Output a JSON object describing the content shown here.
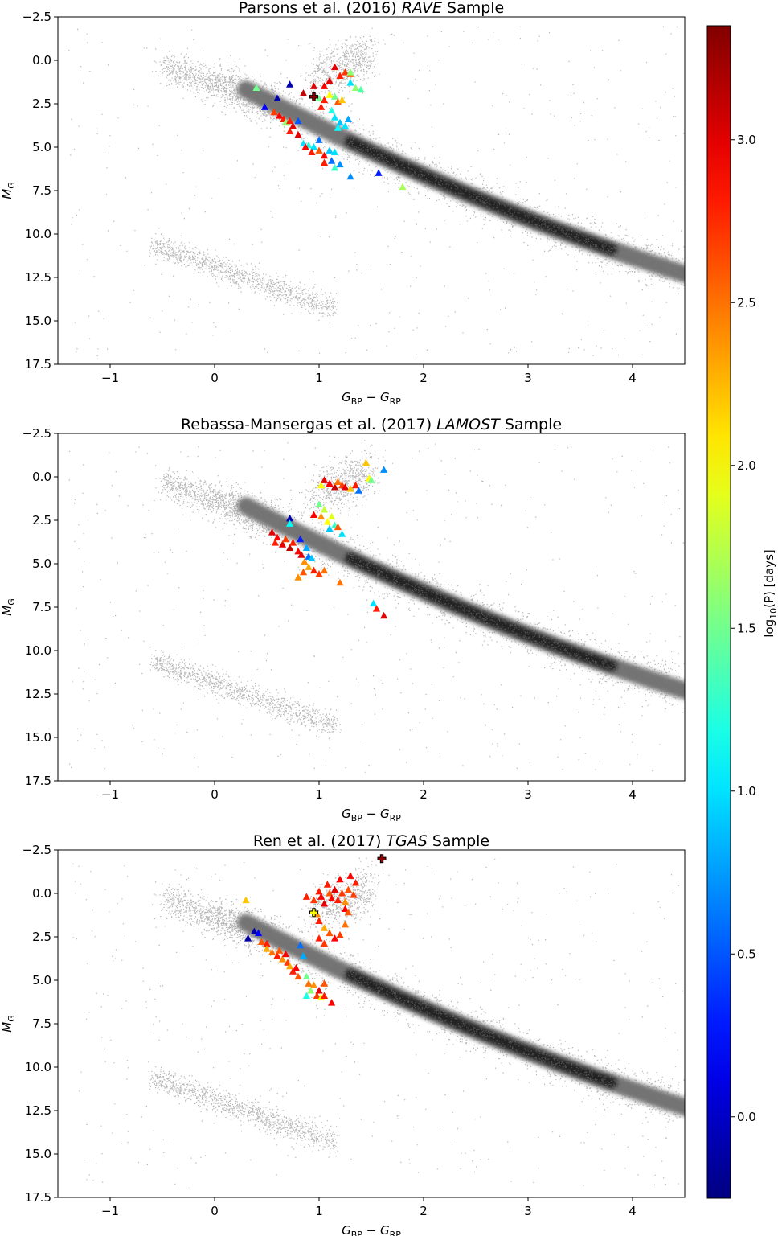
{
  "colorbar": {
    "label": "log10(P) [days]",
    "label_parts": {
      "base": "log",
      "sub": "10",
      "rest": "(P) [days]"
    },
    "range": [
      -0.25,
      3.35
    ],
    "ticks": [
      0.0,
      0.5,
      1.0,
      1.5,
      2.0,
      2.5,
      3.0
    ],
    "tick_labels": [
      "0.0",
      "0.5",
      "1.0",
      "1.5",
      "2.0",
      "2.5",
      "3.0"
    ],
    "colormap": "jet"
  },
  "chart_data": [
    {
      "type": "scatter",
      "title_parts": {
        "pre": "Parsons et al. (2016) ",
        "ital": "RAVE",
        "post": " Sample"
      },
      "xlabel_parts": {
        "a": "G",
        "asub": "BP",
        "mid": " − ",
        "b": "G",
        "bsub": "RP"
      },
      "ylabel_parts": {
        "base": "M",
        "sub": "G"
      },
      "xlim": [
        -1.5,
        4.5
      ],
      "ylim": [
        17.5,
        -2.5
      ],
      "xticks": [
        -1,
        0,
        1,
        2,
        3,
        4
      ],
      "xtick_labels": [
        "−1",
        "0",
        "1",
        "2",
        "3",
        "4"
      ],
      "yticks": [
        -2.5,
        0.0,
        2.5,
        5.0,
        7.5,
        10.0,
        12.5,
        15.0,
        17.5
      ],
      "ytick_labels": [
        "−2.5",
        "0.0",
        "2.5",
        "5.0",
        "7.5",
        "10.0",
        "12.5",
        "15.0",
        "17.5"
      ],
      "series": [
        {
          "marker": "triangle",
          "points": [
            [
              0.4,
              1.6,
              1.5
            ],
            [
              0.72,
              1.4,
              -0.1
            ],
            [
              0.6,
              2.2,
              -0.1
            ],
            [
              0.48,
              2.7,
              0.2
            ],
            [
              0.57,
              3.0,
              2.7
            ],
            [
              0.62,
              3.2,
              2.9
            ],
            [
              0.66,
              3.4,
              2.8
            ],
            [
              0.68,
              3.6,
              1.6
            ],
            [
              0.72,
              3.5,
              2.8
            ],
            [
              0.75,
              3.8,
              3.0
            ],
            [
              0.8,
              3.5,
              0.5
            ],
            [
              0.72,
              4.1,
              2.8
            ],
            [
              0.8,
              4.3,
              3.0
            ],
            [
              0.85,
              4.8,
              1.0
            ],
            [
              0.9,
              4.9,
              1.2
            ],
            [
              0.87,
              5.0,
              2.9
            ],
            [
              0.95,
              5.0,
              1.0
            ],
            [
              1.0,
              4.6,
              0.6
            ],
            [
              0.93,
              5.3,
              2.8
            ],
            [
              1.0,
              5.2,
              2.6
            ],
            [
              1.05,
              5.5,
              2.9
            ],
            [
              1.1,
              5.2,
              0.9
            ],
            [
              1.12,
              5.8,
              0.6
            ],
            [
              1.15,
              5.3,
              1.0
            ],
            [
              1.05,
              5.9,
              2.8
            ],
            [
              1.15,
              6.2,
              1.3
            ],
            [
              1.2,
              6.0,
              0.7
            ],
            [
              1.3,
              6.7,
              0.7
            ],
            [
              1.57,
              6.5,
              0.3
            ],
            [
              1.8,
              7.3,
              1.7
            ],
            [
              0.85,
              1.9,
              3.1
            ],
            [
              0.95,
              1.5,
              3.0
            ],
            [
              1.05,
              1.5,
              2.9
            ],
            [
              1.1,
              1.2,
              3.0
            ],
            [
              1.15,
              0.4,
              3.0
            ],
            [
              1.2,
              0.9,
              2.8
            ],
            [
              1.25,
              0.7,
              2.7
            ],
            [
              1.3,
              0.8,
              2.6
            ],
            [
              1.3,
              0.7,
              1.6
            ],
            [
              1.3,
              1.3,
              1.0
            ],
            [
              1.35,
              1.6,
              1.6
            ],
            [
              1.4,
              1.7,
              1.4
            ],
            [
              1.05,
              2.3,
              2.8
            ],
            [
              1.1,
              2.0,
              2.0
            ],
            [
              1.15,
              2.1,
              1.5
            ],
            [
              1.02,
              2.7,
              2.8
            ],
            [
              1.18,
              2.4,
              2.6
            ],
            [
              1.22,
              2.3,
              2.2
            ],
            [
              1.15,
              3.3,
              1.0
            ],
            [
              1.2,
              3.6,
              0.9
            ],
            [
              1.18,
              3.9,
              1.1
            ],
            [
              1.25,
              3.8,
              1.0
            ],
            [
              1.28,
              3.4,
              0.8
            ],
            [
              1.12,
              2.9,
              1.2
            ],
            [
              1.0,
              2.2,
              1.5
            ]
          ]
        },
        {
          "marker": "plus",
          "points": [
            [
              0.95,
              2.1,
              3.3
            ]
          ]
        }
      ]
    },
    {
      "type": "scatter",
      "title_parts": {
        "pre": "Rebassa-Mansergas et al. (2017) ",
        "ital": "LAMOST",
        "post": " Sample"
      },
      "xlabel_parts": {
        "a": "G",
        "asub": "BP",
        "mid": " − ",
        "b": "G",
        "bsub": "RP"
      },
      "ylabel_parts": {
        "base": "M",
        "sub": "G"
      },
      "xlim": [
        -1.5,
        4.5
      ],
      "ylim": [
        17.5,
        -2.5
      ],
      "xticks": [
        -1,
        0,
        1,
        2,
        3,
        4
      ],
      "xtick_labels": [
        "−1",
        "0",
        "1",
        "2",
        "3",
        "4"
      ],
      "yticks": [
        -2.5,
        0.0,
        2.5,
        5.0,
        7.5,
        10.0,
        12.5,
        15.0,
        17.5
      ],
      "ytick_labels": [
        "−2.5",
        "0.0",
        "2.5",
        "5.0",
        "7.5",
        "10.0",
        "12.5",
        "15.0",
        "17.5"
      ],
      "series": [
        {
          "marker": "triangle",
          "points": [
            [
              0.72,
              2.4,
              -0.1
            ],
            [
              0.72,
              2.7,
              1.1
            ],
            [
              0.82,
              3.6,
              0.3
            ],
            [
              0.55,
              3.2,
              3.0
            ],
            [
              0.6,
              3.5,
              2.9
            ],
            [
              0.58,
              3.8,
              2.8
            ],
            [
              0.65,
              3.9,
              3.0
            ],
            [
              0.68,
              3.6,
              2.7
            ],
            [
              0.72,
              4.1,
              3.1
            ],
            [
              0.75,
              3.8,
              2.8
            ],
            [
              0.8,
              4.3,
              2.9
            ],
            [
              0.83,
              4.5,
              3.0
            ],
            [
              0.88,
              4.1,
              0.8
            ],
            [
              0.9,
              4.6,
              0.6
            ],
            [
              0.86,
              4.9,
              2.4
            ],
            [
              0.93,
              4.7,
              0.9
            ],
            [
              0.9,
              5.2,
              2.3
            ],
            [
              0.85,
              5.5,
              2.6
            ],
            [
              0.8,
              5.8,
              2.4
            ],
            [
              0.95,
              5.4,
              2.8
            ],
            [
              1.0,
              5.6,
              2.7
            ],
            [
              1.05,
              5.4,
              2.5
            ],
            [
              1.2,
              6.1,
              2.5
            ],
            [
              1.52,
              7.3,
              1.0
            ],
            [
              1.55,
              7.6,
              2.8
            ],
            [
              1.62,
              8.0,
              3.0
            ],
            [
              0.95,
              2.2,
              2.9
            ],
            [
              1.0,
              1.6,
              1.5
            ],
            [
              1.05,
              1.9,
              1.8
            ],
            [
              1.02,
              0.5,
              2.0
            ],
            [
              1.05,
              0.2,
              3.0
            ],
            [
              1.1,
              0.4,
              2.9
            ],
            [
              1.15,
              0.6,
              3.1
            ],
            [
              1.18,
              0.3,
              2.5
            ],
            [
              1.22,
              0.5,
              2.7
            ],
            [
              1.25,
              0.6,
              3.0
            ],
            [
              1.3,
              0.7,
              2.2
            ],
            [
              1.35,
              0.5,
              2.8
            ],
            [
              1.38,
              0.8,
              0.6
            ],
            [
              1.45,
              -0.8,
              2.2
            ],
            [
              1.48,
              0.1,
              2.0
            ],
            [
              1.5,
              0.2,
              1.5
            ],
            [
              1.62,
              -0.4,
              0.7
            ],
            [
              1.02,
              2.3,
              2.4
            ],
            [
              1.08,
              2.6,
              2.0
            ],
            [
              1.1,
              3.0,
              0.9
            ],
            [
              1.12,
              2.3,
              1.9
            ],
            [
              1.15,
              2.8,
              1.3
            ],
            [
              1.22,
              3.3,
              1.0
            ],
            [
              1.18,
              2.9,
              2.6
            ]
          ]
        }
      ]
    },
    {
      "type": "scatter",
      "title_parts": {
        "pre": "Ren et al. (2017) ",
        "ital": "TGAS",
        "post": " Sample"
      },
      "xlabel_parts": {
        "a": "G",
        "asub": "BP",
        "mid": " − ",
        "b": "G",
        "bsub": "RP"
      },
      "ylabel_parts": {
        "base": "M",
        "sub": "G"
      },
      "xlim": [
        -1.5,
        4.5
      ],
      "ylim": [
        17.5,
        -2.5
      ],
      "xticks": [
        -1,
        0,
        1,
        2,
        3,
        4
      ],
      "xtick_labels": [
        "−1",
        "0",
        "1",
        "2",
        "3",
        "4"
      ],
      "yticks": [
        -2.5,
        0.0,
        2.5,
        5.0,
        7.5,
        10.0,
        12.5,
        15.0,
        17.5
      ],
      "ytick_labels": [
        "−2.5",
        "0.0",
        "2.5",
        "5.0",
        "7.5",
        "10.0",
        "12.5",
        "15.0",
        "17.5"
      ],
      "series": [
        {
          "marker": "triangle",
          "points": [
            [
              0.3,
              0.4,
              2.2
            ],
            [
              0.32,
              2.6,
              -0.1
            ],
            [
              0.38,
              2.2,
              -0.1
            ],
            [
              0.42,
              2.3,
              0.2
            ],
            [
              0.45,
              2.8,
              2.6
            ],
            [
              0.5,
              2.9,
              2.8
            ],
            [
              0.5,
              3.2,
              2.3
            ],
            [
              0.55,
              3.4,
              2.5
            ],
            [
              0.6,
              3.6,
              2.8
            ],
            [
              0.62,
              3.3,
              2.6
            ],
            [
              0.65,
              3.8,
              2.4
            ],
            [
              0.68,
              3.5,
              2.9
            ],
            [
              0.7,
              4.0,
              2.7
            ],
            [
              0.72,
              4.2,
              2.3
            ],
            [
              0.75,
              4.5,
              2.8
            ],
            [
              0.78,
              4.3,
              2.9
            ],
            [
              0.8,
              4.8,
              2.6
            ],
            [
              0.82,
              3.0,
              0.6
            ],
            [
              0.85,
              3.6,
              0.8
            ],
            [
              0.88,
              4.8,
              1.5
            ],
            [
              0.9,
              5.2,
              2.5
            ],
            [
              0.92,
              5.6,
              1.6
            ],
            [
              0.88,
              5.9,
              1.2
            ],
            [
              0.95,
              5.3,
              2.4
            ],
            [
              0.98,
              5.9,
              2.7
            ],
            [
              1.0,
              5.6,
              3.0
            ],
            [
              1.02,
              6.0,
              2.0
            ],
            [
              1.05,
              5.9,
              2.8
            ],
            [
              1.12,
              6.3,
              2.9
            ],
            [
              1.05,
              5.2,
              2.6
            ],
            [
              0.95,
              0.4,
              2.7
            ],
            [
              0.98,
              1.2,
              2.4
            ],
            [
              1.0,
              -0.1,
              2.8
            ],
            [
              1.02,
              0.2,
              2.9
            ],
            [
              1.05,
              0.6,
              3.0
            ],
            [
              1.08,
              -0.5,
              2.8
            ],
            [
              1.1,
              0.0,
              2.6
            ],
            [
              1.12,
              0.3,
              2.9
            ],
            [
              1.15,
              -0.2,
              3.0
            ],
            [
              1.18,
              0.4,
              2.8
            ],
            [
              1.2,
              -0.8,
              2.9
            ],
            [
              1.22,
              0.0,
              2.7
            ],
            [
              1.25,
              0.5,
              2.4
            ],
            [
              1.28,
              -0.2,
              2.6
            ],
            [
              1.3,
              -1.0,
              2.9
            ],
            [
              1.33,
              0.1,
              2.7
            ],
            [
              1.35,
              -0.6,
              2.8
            ],
            [
              1.25,
              0.9,
              2.9
            ],
            [
              1.28,
              1.1,
              2.6
            ],
            [
              1.0,
              1.6,
              2.8
            ],
            [
              1.05,
              2.0,
              2.3
            ],
            [
              1.1,
              2.3,
              2.6
            ],
            [
              1.15,
              2.6,
              2.9
            ],
            [
              1.2,
              2.4,
              2.7
            ],
            [
              1.25,
              1.8,
              2.5
            ],
            [
              1.0,
              2.6,
              2.8
            ],
            [
              1.05,
              2.9,
              2.7
            ],
            [
              0.88,
              0.2,
              2.8
            ]
          ]
        },
        {
          "marker": "plus",
          "points": [
            [
              1.6,
              -2.0,
              3.3
            ],
            [
              0.95,
              1.1,
              2.0
            ]
          ]
        }
      ]
    }
  ]
}
